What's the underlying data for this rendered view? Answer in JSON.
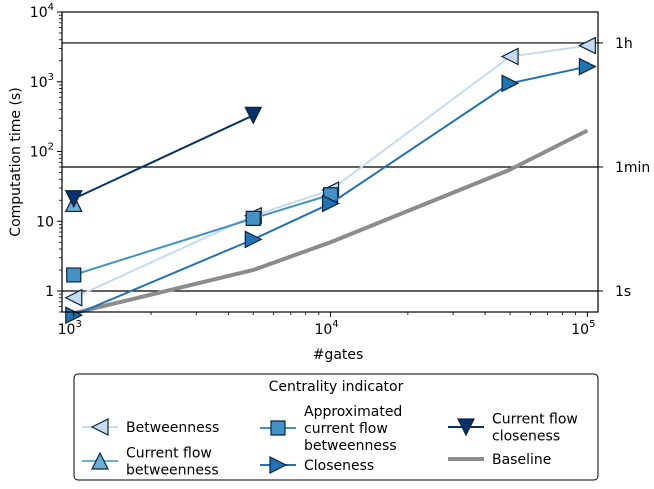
{
  "chart_data": {
    "type": "line",
    "title": "",
    "xlabel": "#gates",
    "ylabel": "Computation time (s)",
    "x_scale": "log",
    "y_scale": "log",
    "xlim": [
      900,
      110000
    ],
    "ylim": [
      0.5,
      10000
    ],
    "x_ticks": [
      {
        "value": 1000,
        "base": "10",
        "exp": "3"
      },
      {
        "value": 10000,
        "base": "10",
        "exp": "4"
      },
      {
        "value": 100000,
        "base": "10",
        "exp": "5"
      }
    ],
    "y_ticks": [
      {
        "value": 1,
        "base": "1",
        "exp": ""
      },
      {
        "value": 10,
        "base": "10",
        "exp": ""
      },
      {
        "value": 100,
        "base": "10",
        "exp": "2"
      },
      {
        "value": 1000,
        "base": "10",
        "exp": "3"
      },
      {
        "value": 10000,
        "base": "10",
        "exp": "4"
      }
    ],
    "reference_lines": [
      {
        "value": 1,
        "label": "1s"
      },
      {
        "value": 60,
        "label": "1min"
      },
      {
        "value": 3600,
        "label": "1h"
      }
    ],
    "legend": {
      "title": "Centrality indicator",
      "placement": "bottom-center, outside plot, 3 columns"
    },
    "series": [
      {
        "name": "Betweenness",
        "marker": "triangle-left",
        "color": "#c6dbef",
        "x": [
          1000,
          5000,
          10000,
          50000,
          100000
        ],
        "y": [
          0.8,
          12,
          28,
          2300,
          3300
        ]
      },
      {
        "name": "Current flow betweenness",
        "marker": "triangle-up",
        "color": "#6baed6",
        "x": [
          1000
        ],
        "y": [
          18
        ]
      },
      {
        "name": "Approximated current flow betweenness",
        "marker": "square",
        "color": "#4292c6",
        "x": [
          1000,
          5000,
          10000
        ],
        "y": [
          1.7,
          11,
          24
        ]
      },
      {
        "name": "Closeness",
        "marker": "triangle-right",
        "color": "#2171b5",
        "x": [
          1000,
          5000,
          10000,
          50000,
          100000
        ],
        "y": [
          0.45,
          5.5,
          18,
          950,
          1650
        ]
      },
      {
        "name": "Current flow closeness",
        "marker": "triangle-down",
        "color": "#08306b",
        "x": [
          1000,
          5000
        ],
        "y": [
          21,
          330
        ]
      },
      {
        "name": "Baseline",
        "marker": "none",
        "color": "#8c8c8c",
        "x": [
          1000,
          5000,
          10000,
          50000,
          100000
        ],
        "y": [
          0.48,
          2.0,
          5.0,
          55,
          200
        ]
      }
    ]
  }
}
